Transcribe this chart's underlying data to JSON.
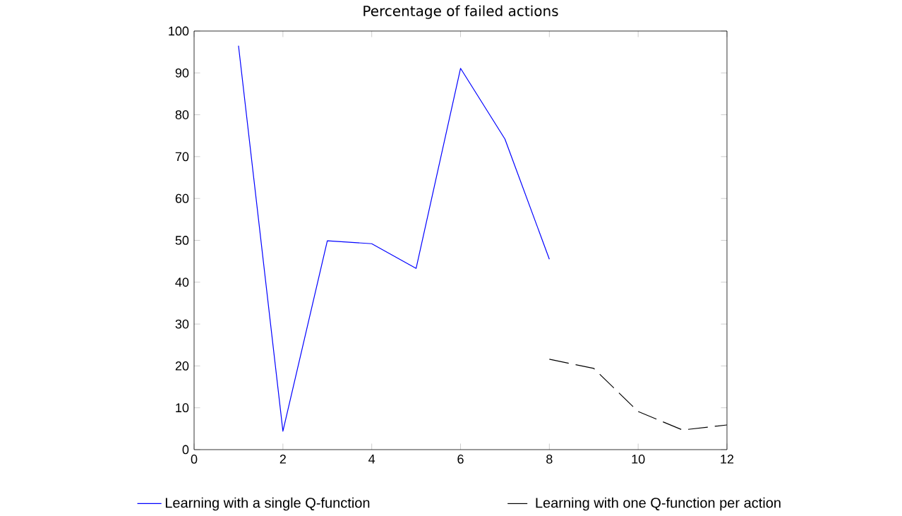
{
  "chart_data": {
    "type": "line",
    "title": "Percentage of failed actions",
    "x": [
      1,
      2,
      3,
      4,
      5,
      6,
      7,
      8,
      9,
      10,
      11,
      12
    ],
    "series": [
      {
        "name": "Learning with a single Q-function",
        "color": "#0000ff",
        "line_style": "solid",
        "values": [
          96.5,
          4.4,
          49.9,
          49.2,
          43.3,
          91.1,
          74.2,
          45.5,
          null,
          null,
          null,
          null
        ]
      },
      {
        "name": "Learning with one Q-function per action",
        "color": "#000000",
        "line_style": "dashed",
        "values": [
          null,
          null,
          null,
          null,
          null,
          null,
          null,
          21.6,
          19.4,
          9.1,
          4.7,
          5.9
        ]
      }
    ],
    "xlim": [
      0,
      12
    ],
    "ylim": [
      0,
      100
    ],
    "xticks": [
      0,
      2,
      4,
      6,
      8,
      10,
      12
    ],
    "yticks": [
      0,
      10,
      20,
      30,
      40,
      50,
      60,
      70,
      80,
      90,
      100
    ],
    "grid": false,
    "legend": "bottom",
    "marker": "none"
  }
}
